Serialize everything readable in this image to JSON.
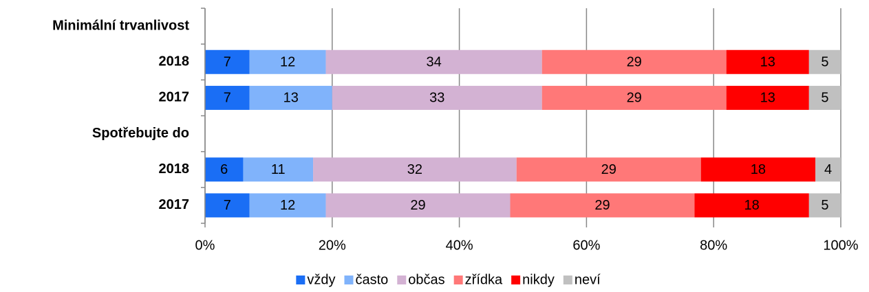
{
  "chart_data": {
    "type": "bar",
    "orientation": "horizontal",
    "stacked": true,
    "categories": [
      "Minimální trvanlivost",
      "2018",
      "2017",
      "Spotřebujte do",
      "2018",
      "2017"
    ],
    "series": [
      {
        "name": "vždy",
        "color": "#1a6ef5",
        "values": [
          null,
          7,
          7,
          null,
          6,
          7
        ]
      },
      {
        "name": "často",
        "color": "#80b3fb",
        "values": [
          null,
          12,
          13,
          null,
          11,
          12
        ]
      },
      {
        "name": "občas",
        "color": "#d3b2d3",
        "values": [
          null,
          34,
          33,
          null,
          32,
          29
        ]
      },
      {
        "name": "zřídka",
        "color": "#ff7878",
        "values": [
          null,
          29,
          29,
          null,
          29,
          29
        ]
      },
      {
        "name": "nikdy",
        "color": "#ff0000",
        "values": [
          null,
          13,
          13,
          null,
          18,
          18
        ]
      },
      {
        "name": "neví",
        "color": "#c0c0c0",
        "values": [
          null,
          5,
          5,
          null,
          4,
          5
        ]
      }
    ],
    "xlim": [
      0,
      100
    ],
    "xticks": [
      {
        "value": 0,
        "label": "0%"
      },
      {
        "value": 20,
        "label": "20%"
      },
      {
        "value": 40,
        "label": "40%"
      },
      {
        "value": 60,
        "label": "60%"
      },
      {
        "value": 80,
        "label": "80%"
      },
      {
        "value": 100,
        "label": "100%"
      }
    ],
    "grid": true,
    "legend": "bottom"
  }
}
